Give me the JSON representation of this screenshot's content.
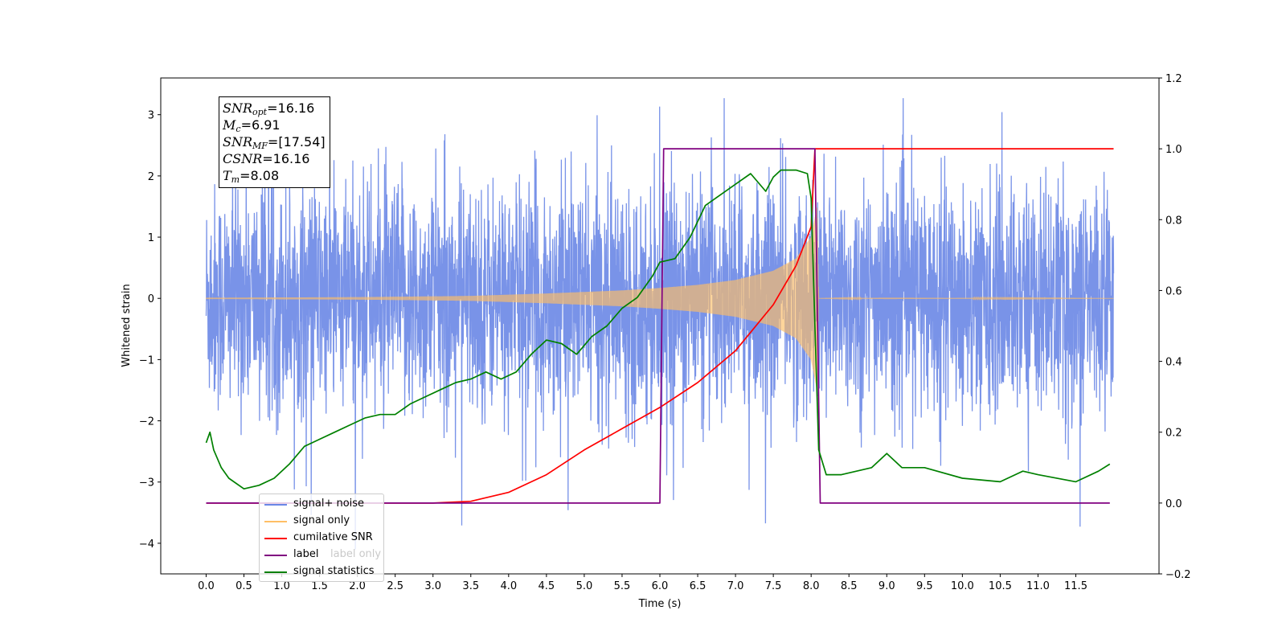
{
  "chart_data": {
    "type": "line",
    "title": "",
    "xlabel": "Time (s)",
    "ylabel": "Whitened strain",
    "xlim": [
      -0.6,
      12.6
    ],
    "ylim": [
      -4.5,
      3.6
    ],
    "y2lim": [
      -0.2,
      1.2
    ],
    "x_ticks": [
      "0.0",
      "0.5",
      "1.0",
      "1.5",
      "2.0",
      "2.5",
      "3.0",
      "3.5",
      "4.0",
      "4.5",
      "5.0",
      "5.5",
      "6.0",
      "6.5",
      "7.0",
      "7.5",
      "8.0",
      "8.5",
      "9.0",
      "9.5",
      "10.0",
      "10.5",
      "11.0",
      "11.5"
    ],
    "y_ticks": [
      "3",
      "2",
      "1",
      "0",
      "−1",
      "−2",
      "−3",
      "−4"
    ],
    "y2_ticks": [
      "1.2",
      "1.0",
      "0.8",
      "0.6",
      "0.4",
      "0.2",
      "0.0",
      "−0.2"
    ],
    "grid": false,
    "legend_position": "lower-left",
    "annotation": {
      "snr_opt": "16.16",
      "mc": "6.91",
      "snr_mf": "[17.54]",
      "csnr": "16.16",
      "tm": "8.08"
    },
    "series": [
      {
        "name": "signal+ noise",
        "color": "#6a87e6",
        "axis": "left",
        "x_range": [
          0.0,
          12.0
        ],
        "noise_amplitude_band": [
          -4.1,
          3.27
        ]
      },
      {
        "name": "signal only",
        "color": "#ffbf66",
        "axis": "left",
        "x_range": [
          0.0,
          12.0
        ],
        "envelope_x": [
          0.0,
          2.0,
          3.5,
          4.5,
          5.5,
          6.0,
          6.5,
          7.0,
          7.5,
          7.8,
          8.0,
          8.08,
          8.1,
          9.0,
          12.0
        ],
        "envelope_amplitude": [
          0.01,
          0.02,
          0.04,
          0.08,
          0.13,
          0.17,
          0.22,
          0.3,
          0.45,
          0.65,
          1.0,
          1.5,
          0.0,
          0.01,
          0.0
        ]
      },
      {
        "name": "cumilative SNR",
        "color": "#ff0000",
        "axis": "right",
        "x": [
          0.0,
          3.0,
          3.5,
          4.0,
          4.5,
          5.0,
          5.5,
          6.0,
          6.5,
          7.0,
          7.5,
          7.8,
          8.0,
          8.05,
          8.1,
          12.0
        ],
        "values": [
          0.0,
          0.0,
          0.005,
          0.03,
          0.08,
          0.15,
          0.21,
          0.27,
          0.34,
          0.43,
          0.56,
          0.67,
          0.78,
          1.0,
          1.0,
          1.0
        ]
      },
      {
        "name": "label",
        "color": "#800080",
        "axis": "right",
        "x": [
          0.0,
          6.0,
          6.05,
          8.05,
          8.12,
          11.95
        ],
        "values": [
          0.0,
          0.0,
          1.0,
          1.0,
          0.0,
          0.0
        ]
      },
      {
        "name": "signal statistics",
        "color": "#008000",
        "axis": "right",
        "x": [
          0.0,
          0.05,
          0.1,
          0.2,
          0.3,
          0.5,
          0.7,
          0.9,
          1.1,
          1.3,
          1.5,
          1.7,
          1.9,
          2.1,
          2.3,
          2.5,
          2.7,
          2.9,
          3.1,
          3.3,
          3.5,
          3.7,
          3.9,
          4.1,
          4.3,
          4.5,
          4.7,
          4.9,
          5.1,
          5.3,
          5.5,
          5.7,
          5.9,
          6.0,
          6.2,
          6.4,
          6.6,
          6.8,
          7.0,
          7.2,
          7.4,
          7.5,
          7.6,
          7.8,
          7.95,
          8.0,
          8.05,
          8.1,
          8.2,
          8.4,
          8.8,
          9.0,
          9.2,
          9.5,
          10.0,
          10.5,
          10.8,
          11.0,
          11.5,
          11.8,
          11.95
        ],
        "values": [
          0.17,
          0.2,
          0.15,
          0.1,
          0.07,
          0.04,
          0.05,
          0.07,
          0.11,
          0.16,
          0.18,
          0.2,
          0.22,
          0.24,
          0.25,
          0.25,
          0.28,
          0.3,
          0.32,
          0.34,
          0.35,
          0.37,
          0.35,
          0.37,
          0.42,
          0.46,
          0.45,
          0.42,
          0.47,
          0.5,
          0.55,
          0.58,
          0.64,
          0.68,
          0.69,
          0.75,
          0.84,
          0.87,
          0.9,
          0.93,
          0.88,
          0.92,
          0.94,
          0.94,
          0.93,
          0.86,
          0.5,
          0.15,
          0.08,
          0.08,
          0.1,
          0.14,
          0.1,
          0.1,
          0.07,
          0.06,
          0.09,
          0.08,
          0.06,
          0.09,
          0.11
        ]
      }
    ],
    "legend_entries": [
      "signal+ noise",
      "signal only",
      "cumilative SNR",
      "label",
      "signal statistics"
    ],
    "legend_hidden_fragment": "label only"
  }
}
